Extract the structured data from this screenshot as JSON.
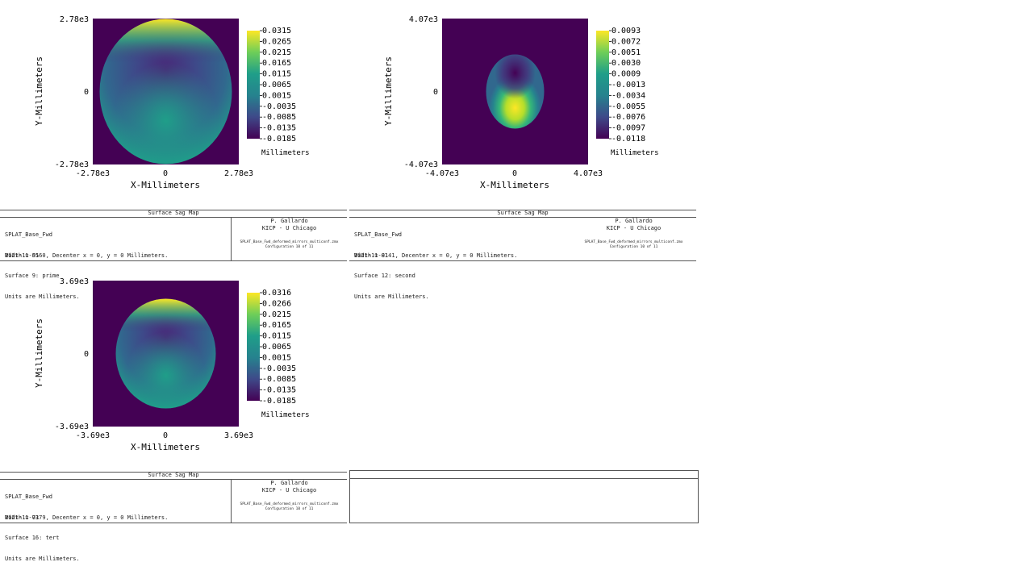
{
  "chart_data": [
    {
      "type": "heatmap",
      "xlabel": "X-Millimeters",
      "ylabel": "Y-Millimeters",
      "x_ticks": [
        "-2.78e3",
        "0",
        "2.78e3"
      ],
      "y_ticks": [
        "2.78e3",
        "0",
        "-2.78e3"
      ],
      "xlim": [
        -2780,
        2780
      ],
      "ylim": [
        -2780,
        2780
      ],
      "colorbar": {
        "label": "Millimeters",
        "ticks": [
          "0.0315",
          "0.0265",
          "0.0215",
          "0.0165",
          "0.0115",
          "0.0065",
          "0.0015",
          "-0.0035",
          "-0.0085",
          "-0.0135",
          "-0.0185"
        ],
        "range": [
          -0.0185,
          0.0315
        ]
      },
      "aperture": {
        "shape": "circle",
        "radius_mm": 2780
      },
      "colormap": "viridis"
    },
    {
      "type": "heatmap",
      "xlabel": "X-Millimeters",
      "ylabel": "Y-Millimeters",
      "x_ticks": [
        "-4.07e3",
        "0",
        "4.07e3"
      ],
      "y_ticks": [
        "4.07e3",
        "0",
        "-4.07e3"
      ],
      "xlim": [
        -4070,
        4070
      ],
      "ylim": [
        -4070,
        4070
      ],
      "colorbar": {
        "label": "Millimeters",
        "ticks": [
          "0.0093",
          "0.0072",
          "0.0051",
          "0.0030",
          "0.0009",
          "-0.0013",
          "-0.0034",
          "-0.0055",
          "-0.0076",
          "-0.0097",
          "-0.0118"
        ],
        "range": [
          -0.0118,
          0.0093
        ]
      },
      "aperture": {
        "shape": "ellipse",
        "semi_x_mm": 1600,
        "semi_y_mm": 2070
      },
      "colormap": "viridis"
    },
    {
      "type": "heatmap",
      "xlabel": "X-Millimeters",
      "ylabel": "Y-Millimeters",
      "x_ticks": [
        "-3.69e3",
        "0",
        "3.69e3"
      ],
      "y_ticks": [
        "3.69e3",
        "0",
        "-3.69e3"
      ],
      "xlim": [
        -3690,
        3690
      ],
      "ylim": [
        -3690,
        3690
      ],
      "colorbar": {
        "label": "Millimeters",
        "ticks": [
          "0.0316",
          "0.0266",
          "0.0215",
          "0.0165",
          "0.0115",
          "0.0065",
          "0.0015",
          "-0.0035",
          "-0.0085",
          "-0.0135",
          "-0.0185"
        ],
        "range": [
          -0.0185,
          0.0316
        ]
      },
      "aperture": {
        "shape": "circle",
        "radius_mm": 2780
      },
      "colormap": "viridis"
    }
  ],
  "panels": [
    {
      "title": "Surface Sag Map",
      "file": "SPLAT_Base_Fwd",
      "date": "2021-11-01",
      "surface": "Surface 9: prime",
      "units": "Units are Millimeters.",
      "width": "Width = 5560, Decenter x = 0, y = 0 Millimeters.",
      "author": "P. Gallardo",
      "org": "KICP - U Chicago",
      "zmx": "SPLAT_Base_Fwd_deformed_mirrors_multiconf.zmx",
      "config": "Configuration 10 of 11"
    },
    {
      "title": "Surface Sag Map",
      "file": "SPLAT_Base_Fwd",
      "date": "2021-11-01",
      "surface": "Surface 12: second",
      "units": "Units are Millimeters.",
      "width": "Width = 8141, Decenter x = 0, y = 0 Millimeters.",
      "author": "P. Gallardo",
      "org": "KICP - U Chicago",
      "zmx": "SPLAT_Base_Fwd_deformed_mirrors_multiconf.zmx",
      "config": "Configuration 10 of 11"
    },
    {
      "title": "Surface Sag Map",
      "file": "SPLAT_Base_Fwd",
      "date": "2021-11-01",
      "surface": "Surface 16: tert",
      "units": "Units are Millimeters.",
      "width": "Width = 7379, Decenter x = 0, y = 0 Millimeters.",
      "author": "P. Gallardo",
      "org": "KICP - U Chicago",
      "zmx": "SPLAT_Base_Fwd_deformed_mirrors_multiconf.zmx",
      "config": "Configuration 10 of 11"
    }
  ],
  "colors": {
    "background_fill": "#440154",
    "viridis": [
      "#440154",
      "#482878",
      "#3e4989",
      "#31688e",
      "#26828e",
      "#1f9e89",
      "#35b779",
      "#6ece58",
      "#b5de2b",
      "#fde725"
    ]
  }
}
